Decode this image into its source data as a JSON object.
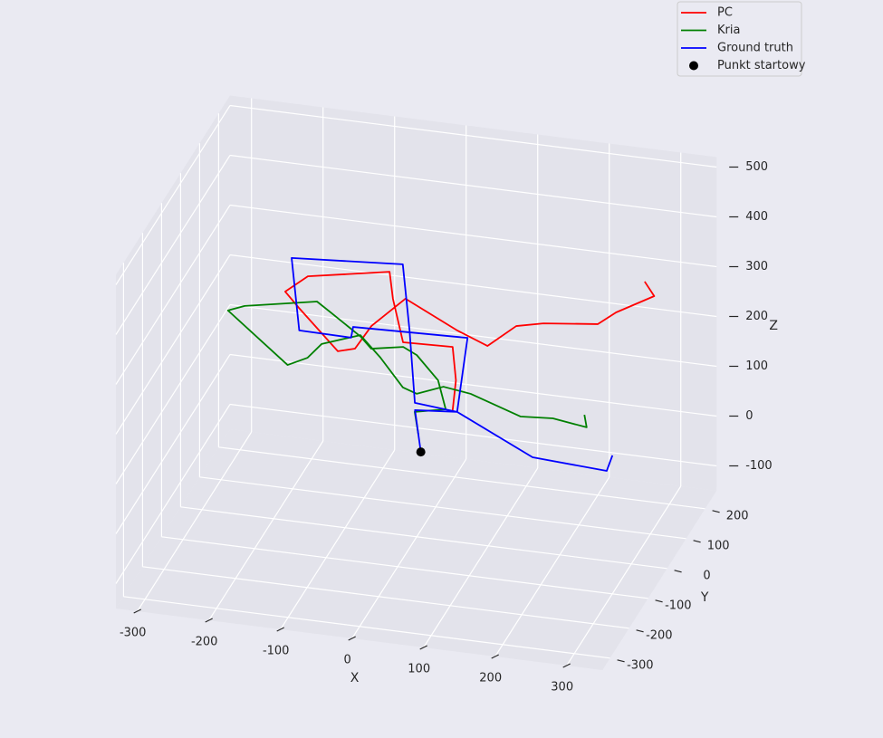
{
  "chart_data": {
    "type": "line3d",
    "xlabel": "X",
    "ylabel": "Y",
    "zlabel": "Z",
    "xlim": [
      -330,
      350
    ],
    "ylim": [
      -340,
      260
    ],
    "zlim": [
      -150,
      520
    ],
    "xticks": [
      -300,
      -200,
      -100,
      0,
      100,
      200,
      300
    ],
    "yticks": [
      -300,
      -200,
      -100,
      0,
      100,
      200
    ],
    "zticks": [
      -100,
      0,
      100,
      200,
      300,
      400,
      500
    ],
    "grid": true,
    "legend": "upper right",
    "series": [
      {
        "name": "PC",
        "color": "#ff0000",
        "x": [
          46,
          49,
          46,
          -22,
          -34,
          -40,
          -142,
          -171,
          -152,
          -103,
          -83,
          -64,
          -26,
          43,
          78,
          107,
          140,
          211,
          229,
          269,
          257
        ],
        "y": [
          15,
          22,
          16,
          11,
          3,
          8,
          -38,
          -48,
          -47,
          -27,
          -12,
          3,
          39,
          53,
          79,
          121,
          140,
          159,
          187,
          237,
          232
        ],
        "z": [
          100,
          160,
          230,
          230,
          320,
          370,
          370,
          340,
          310,
          220,
          220,
          260,
          300,
          240,
          200,
          220,
          220,
          220,
          230,
          240,
          270
        ]
      },
      {
        "name": "Kria",
        "color": "#008000",
        "x": [
          -4,
          -7,
          31,
          22,
          -6,
          -22,
          -62,
          -77,
          -116,
          -134,
          -224,
          -246,
          -169,
          -145,
          -130,
          -79,
          -51,
          -22,
          -3,
          30,
          67,
          134,
          177,
          224,
          219
        ],
        "y": [
          24,
          16,
          36,
          30,
          23,
          12,
          -6,
          -4,
          -17,
          -20,
          -62,
          -67,
          -43,
          -28,
          -11,
          1,
          1,
          10,
          11,
          28,
          32,
          43,
          50,
          51,
          58
        ],
        "z": [
          40,
          90,
          90,
          150,
          200,
          220,
          220,
          240,
          290,
          310,
          310,
          300,
          190,
          200,
          220,
          240,
          200,
          140,
          130,
          140,
          130,
          90,
          90,
          80,
          100
        ]
      },
      {
        "name": "Ground truth",
        "color": "#0000ff",
        "x": [
          -3,
          -4,
          52,
          66,
          -91,
          -93,
          -166,
          -174,
          -25,
          -15,
          -6,
          52,
          187,
          294,
          301
        ],
        "y": [
          33,
          6,
          17,
          19,
          8,
          5,
          7,
          -3,
          21,
          19,
          13,
          17,
          -94,
          -107,
          -103
        ],
        "z": [
          0,
          100,
          100,
          250,
          250,
          230,
          230,
          380,
          380,
          250,
          110,
          100,
          100,
          100,
          130
        ]
      }
    ],
    "points": [
      {
        "name": "Punkt startowy",
        "color": "#000000",
        "x": [
          -3
        ],
        "y": [
          33
        ],
        "z": [
          0
        ]
      }
    ]
  }
}
